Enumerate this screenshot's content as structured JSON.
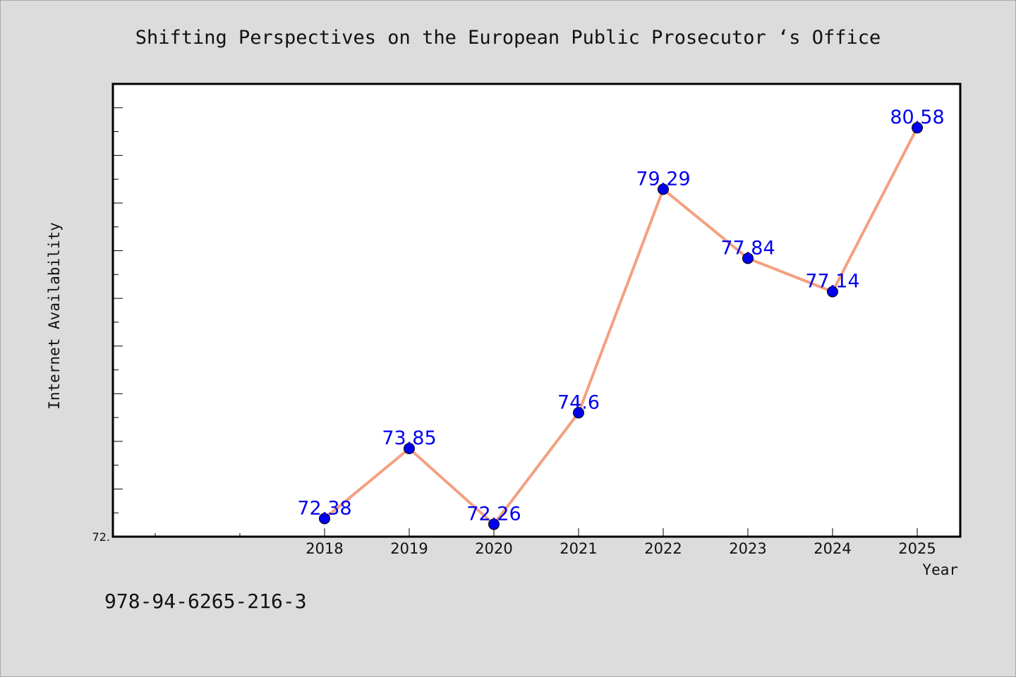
{
  "chart_data": {
    "type": "line",
    "title": "Shifting Perspectives on the European Public Prosecutor ‘s Office",
    "xlabel": "Year",
    "ylabel": "Internet Availability",
    "categories": [
      "2018",
      "2019",
      "2020",
      "2021",
      "2022",
      "2023",
      "2024",
      "2025"
    ],
    "series": [
      {
        "values": [
          72.38,
          73.85,
          72.26,
          74.6,
          79.29,
          77.84,
          77.14,
          80.58
        ],
        "data_labels": [
          "72.38",
          "73.85",
          "72.26",
          "74.6",
          "79.29",
          "77.84",
          "77.14",
          "80.58"
        ],
        "line_color": "#f4a080",
        "marker_color": "#0000ee"
      }
    ],
    "ylim": [
      72.0,
      81.5
    ],
    "y_tick_labels": [
      "72."
    ],
    "grid": false,
    "legend": "none"
  },
  "footer": {
    "isbn": "978-94-6265-216-3"
  },
  "colors": {
    "background": "#dcdcdc",
    "plot_area": "#ffffff",
    "axis": "#000000",
    "label_text": "#0000ee"
  }
}
